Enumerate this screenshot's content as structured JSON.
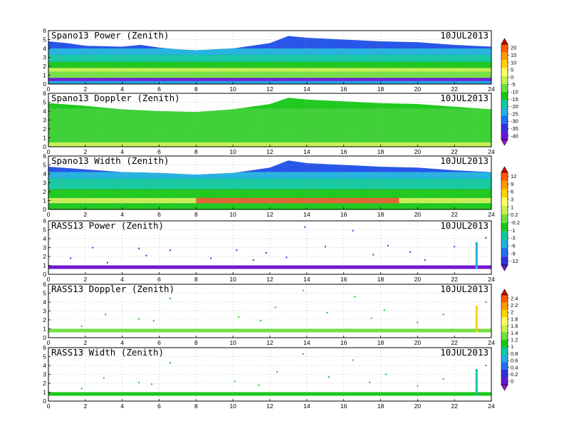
{
  "figure": {
    "date_label": "10JUL2013",
    "x_axis": {
      "range": [
        0,
        24
      ],
      "ticks": [
        0,
        2,
        4,
        6,
        8,
        10,
        12,
        14,
        16,
        18,
        20,
        22,
        24
      ]
    },
    "y_axis": {
      "range": [
        0,
        6
      ],
      "ticks": [
        0,
        1,
        2,
        3,
        4,
        5,
        6
      ]
    },
    "grid": "dotted"
  },
  "colorbars": [
    {
      "id": "cb-power",
      "labels": [
        "20",
        "15",
        "10",
        "5",
        "0",
        "-5",
        "-10",
        "-15",
        "-20",
        "-25",
        "-30",
        "-35",
        "-40"
      ],
      "colors": [
        "#d40000",
        "#ff5a00",
        "#ff9a00",
        "#ffd200",
        "#ffff60",
        "#c8f050",
        "#70e040",
        "#18c818",
        "#10c8a0",
        "#20b0e0",
        "#2070f0",
        "#3030e0",
        "#6018d0",
        "#a010d0"
      ]
    },
    {
      "id": "cb-width",
      "labels": [
        "12",
        "9",
        "6",
        "3",
        "1",
        "0.2",
        "-0.2",
        "-1",
        "-3",
        "-6",
        "-9",
        "-12"
      ],
      "colors": [
        "#d40000",
        "#ff5a00",
        "#ff9a00",
        "#ffd200",
        "#ffff60",
        "#c8f050",
        "#70e040",
        "#18c818",
        "#10c8a0",
        "#20b0e0",
        "#2070f0",
        "#3030e0",
        "#6018d0"
      ]
    },
    {
      "id": "cb-rass",
      "labels": [
        "2.4",
        "2.2",
        "2",
        "1.8",
        "1.6",
        "1.4",
        "1.2",
        "1",
        "0.8",
        "0.6",
        "0.4",
        "0.2",
        "0"
      ],
      "colors": [
        "#d40000",
        "#ff5a00",
        "#ff9a00",
        "#ffd200",
        "#ffff60",
        "#c8f050",
        "#70e040",
        "#18c818",
        "#10c8a0",
        "#20b0e0",
        "#2070f0",
        "#3030e0",
        "#6018d0",
        "#a010d0"
      ]
    }
  ],
  "chart_data": [
    {
      "type": "heatmap",
      "title": "Spano13 Power (Zenith)",
      "xlim": [
        0,
        24
      ],
      "ylim": [
        0,
        6
      ],
      "layers": [
        {
          "y": [
            0.0,
            0.35
          ],
          "color": "#20a0e0"
        },
        {
          "y": [
            0.35,
            0.7
          ],
          "color": "#7018d0"
        },
        {
          "y": [
            0.7,
            1.4
          ],
          "color": "#70e040"
        },
        {
          "y": [
            1.4,
            1.8
          ],
          "color": "#c8f050"
        },
        {
          "y": [
            1.8,
            2.5
          ],
          "color": "#18c818"
        },
        {
          "y": [
            2.5,
            3.3
          ],
          "color": "#10c8a0"
        },
        {
          "y": [
            3.3,
            4.0
          ],
          "color": "#20b0e0"
        }
      ],
      "top": [
        [
          0.0,
          4.8
        ],
        [
          1.0,
          4.6
        ],
        [
          2.0,
          4.3
        ],
        [
          4.0,
          4.2
        ],
        [
          5.0,
          4.4
        ],
        [
          6.0,
          4.1
        ],
        [
          7.0,
          3.9
        ],
        [
          8.0,
          3.8
        ],
        [
          10.0,
          4.0
        ],
        [
          12.0,
          4.6
        ],
        [
          13.0,
          5.4
        ],
        [
          14.0,
          5.2
        ],
        [
          16.0,
          5.0
        ],
        [
          18.0,
          4.8
        ],
        [
          20.0,
          4.7
        ],
        [
          22.0,
          4.4
        ],
        [
          24.0,
          4.2
        ]
      ],
      "top_color": "#2050e8"
    },
    {
      "type": "heatmap",
      "title": "Spano13 Doppler (Zenith)",
      "xlim": [
        0,
        24
      ],
      "ylim": [
        0,
        6
      ],
      "layers": [
        {
          "y": [
            0.0,
            0.5
          ],
          "color": "#c8f050"
        },
        {
          "y": [
            0.5,
            4.3
          ],
          "color": "#38d030"
        }
      ],
      "top": [
        [
          0.0,
          4.9
        ],
        [
          2.0,
          4.6
        ],
        [
          4.0,
          4.2
        ],
        [
          6.0,
          4.0
        ],
        [
          8.0,
          3.9
        ],
        [
          10.0,
          4.2
        ],
        [
          12.0,
          4.8
        ],
        [
          13.0,
          5.5
        ],
        [
          14.0,
          5.3
        ],
        [
          16.0,
          5.1
        ],
        [
          18.0,
          4.9
        ],
        [
          20.0,
          4.8
        ],
        [
          22.0,
          4.5
        ],
        [
          24.0,
          4.2
        ]
      ],
      "top_color": "#18c818"
    },
    {
      "type": "heatmap",
      "title": "Spano13 Width (Zenith)",
      "xlim": [
        0,
        24
      ],
      "ylim": [
        0,
        6
      ],
      "layers": [
        {
          "y": [
            0.0,
            0.7
          ],
          "color": "#18c818"
        },
        {
          "y": [
            0.7,
            1.3
          ],
          "color": "#c8f050"
        },
        {
          "y": [
            1.3,
            2.3
          ],
          "color": "#18c818"
        },
        {
          "y": [
            2.3,
            3.5
          ],
          "color": "#10c8a0"
        },
        {
          "y": [
            3.5,
            4.2
          ],
          "color": "#20b0e0"
        }
      ],
      "hotspot": {
        "x": [
          8.0,
          19.0
        ],
        "y": [
          0.7,
          1.3
        ],
        "color": "#e83020"
      },
      "top": [
        [
          0.0,
          4.8
        ],
        [
          2.0,
          4.5
        ],
        [
          4.0,
          4.2
        ],
        [
          6.0,
          4.1
        ],
        [
          8.0,
          3.9
        ],
        [
          10.0,
          4.1
        ],
        [
          12.0,
          4.7
        ],
        [
          13.0,
          5.5
        ],
        [
          14.0,
          5.2
        ],
        [
          16.0,
          5.0
        ],
        [
          18.0,
          4.8
        ],
        [
          20.0,
          4.7
        ],
        [
          22.0,
          4.4
        ],
        [
          24.0,
          4.2
        ]
      ],
      "top_color": "#2050e8"
    },
    {
      "type": "scatter",
      "title": "RASS13 Power (Zenith)",
      "xlim": [
        0,
        24
      ],
      "ylim": [
        0,
        6
      ],
      "band": {
        "y": [
          0.6,
          1.0
        ],
        "color": "#7018d0"
      },
      "spike": {
        "x": 23.2,
        "y": [
          0.6,
          3.6
        ],
        "color": "#20b0e0"
      },
      "points": [
        [
          1.2,
          1.8
        ],
        [
          2.4,
          3.0
        ],
        [
          3.2,
          1.3
        ],
        [
          4.9,
          2.9
        ],
        [
          5.3,
          2.1
        ],
        [
          6.6,
          2.7
        ],
        [
          8.8,
          1.8
        ],
        [
          10.2,
          2.7
        ],
        [
          11.1,
          1.6
        ],
        [
          11.8,
          2.4
        ],
        [
          12.9,
          1.9
        ],
        [
          13.9,
          5.3
        ],
        [
          15.0,
          3.1
        ],
        [
          16.5,
          4.9
        ],
        [
          17.6,
          2.2
        ],
        [
          18.4,
          3.2
        ],
        [
          19.6,
          2.5
        ],
        [
          20.4,
          1.6
        ],
        [
          22.0,
          3.1
        ],
        [
          23.7,
          4.1
        ]
      ],
      "point_color": "#7018d0"
    },
    {
      "type": "scatter",
      "title": "RASS13 Doppler (Zenith)",
      "xlim": [
        0,
        24
      ],
      "ylim": [
        0,
        6
      ],
      "band": {
        "y": [
          0.6,
          1.0
        ],
        "color": "#70e040"
      },
      "spike": {
        "x": 23.2,
        "y": [
          0.6,
          3.6
        ],
        "color": "#ffd200"
      },
      "points": [
        [
          1.8,
          1.3
        ],
        [
          3.1,
          2.6
        ],
        [
          4.9,
          2.1
        ],
        [
          5.7,
          1.9
        ],
        [
          6.6,
          4.4
        ],
        [
          10.3,
          2.3
        ],
        [
          11.5,
          1.9
        ],
        [
          12.3,
          3.4
        ],
        [
          13.8,
          5.3
        ],
        [
          15.1,
          2.8
        ],
        [
          16.6,
          4.6
        ],
        [
          17.5,
          2.2
        ],
        [
          18.2,
          3.1
        ],
        [
          20.0,
          1.7
        ],
        [
          21.4,
          2.6
        ],
        [
          23.7,
          4.0
        ]
      ],
      "point_color": "#18c818"
    },
    {
      "type": "scatter",
      "title": "RASS13 Width (Zenith)",
      "xlim": [
        0,
        24
      ],
      "ylim": [
        0,
        6
      ],
      "band": {
        "y": [
          0.6,
          1.0
        ],
        "color": "#18c818"
      },
      "spike": {
        "x": 23.2,
        "y": [
          0.6,
          3.6
        ],
        "color": "#10c8a0"
      },
      "points": [
        [
          1.8,
          1.4
        ],
        [
          3.0,
          2.6
        ],
        [
          4.9,
          2.1
        ],
        [
          5.6,
          1.9
        ],
        [
          6.6,
          4.3
        ],
        [
          10.1,
          2.2
        ],
        [
          11.4,
          1.8
        ],
        [
          12.4,
          3.3
        ],
        [
          13.8,
          5.3
        ],
        [
          15.2,
          2.7
        ],
        [
          16.5,
          4.6
        ],
        [
          17.4,
          2.1
        ],
        [
          18.3,
          3.0
        ],
        [
          20.0,
          1.7
        ],
        [
          21.4,
          2.5
        ],
        [
          23.7,
          4.0
        ]
      ],
      "point_color": "#18c818"
    }
  ]
}
